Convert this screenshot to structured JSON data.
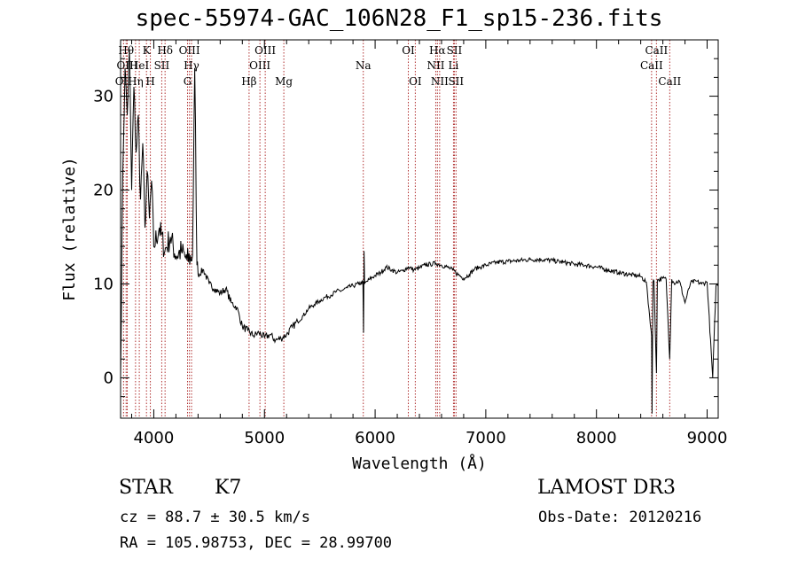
{
  "title": "spec-55974-GAC_106N28_F1_sp15-236.fits",
  "info": {
    "class": "STAR",
    "subclass": "K7",
    "survey": "LAMOST DR3",
    "cz": "cz = 88.7 ± 30.5 km/s",
    "obs_date": "Obs-Date: 20120216",
    "coords": "RA = 105.98753, DEC =  28.99700"
  },
  "colors": {
    "spectrum": "#000000",
    "line_marker": "#b03030",
    "axes": "#000000"
  },
  "chart_data": {
    "type": "line",
    "xlabel": "Wavelength (Å)",
    "ylabel": "Flux (relative)",
    "xlim": [
      3700,
      9100
    ],
    "ylim": [
      -4.3,
      36
    ],
    "xticks": [
      4000,
      5000,
      6000,
      7000,
      8000,
      9000
    ],
    "yticks": [
      0,
      10,
      20,
      30
    ],
    "series": [
      {
        "values": [
          [
            3700,
            0
          ],
          [
            3720,
            22
          ],
          [
            3740,
            33
          ],
          [
            3760,
            28
          ],
          [
            3780,
            35
          ],
          [
            3800,
            20
          ],
          [
            3820,
            31
          ],
          [
            3840,
            24
          ],
          [
            3860,
            28
          ],
          [
            3880,
            19
          ],
          [
            3900,
            25
          ],
          [
            3920,
            16
          ],
          [
            3940,
            22
          ],
          [
            3960,
            17
          ],
          [
            3980,
            21
          ],
          [
            4000,
            14
          ],
          [
            4050,
            16
          ],
          [
            4100,
            13.5
          ],
          [
            4150,
            15
          ],
          [
            4200,
            13
          ],
          [
            4250,
            13.5
          ],
          [
            4300,
            12.5
          ],
          [
            4350,
            13
          ],
          [
            4370,
            33
          ],
          [
            4390,
            12
          ],
          [
            4400,
            11
          ],
          [
            4450,
            11.5
          ],
          [
            4500,
            10
          ],
          [
            4550,
            9.5
          ],
          [
            4600,
            9
          ],
          [
            4650,
            9.5
          ],
          [
            4700,
            8
          ],
          [
            4750,
            7.5
          ],
          [
            4800,
            5.5
          ],
          [
            4850,
            5
          ],
          [
            4900,
            4.5
          ],
          [
            4950,
            4.8
          ],
          [
            5000,
            4.3
          ],
          [
            5050,
            4.6
          ],
          [
            5100,
            4
          ],
          [
            5150,
            4.2
          ],
          [
            5200,
            4.6
          ],
          [
            5250,
            5.4
          ],
          [
            5300,
            6
          ],
          [
            5350,
            6.6
          ],
          [
            5400,
            7.4
          ],
          [
            5450,
            7.8
          ],
          [
            5500,
            8.2
          ],
          [
            5550,
            8.6
          ],
          [
            5600,
            8.8
          ],
          [
            5650,
            9.2
          ],
          [
            5700,
            9.3
          ],
          [
            5750,
            9.6
          ],
          [
            5800,
            9.8
          ],
          [
            5850,
            10
          ],
          [
            5890,
            10.2
          ],
          [
            5895,
            4.8
          ],
          [
            5900,
            13.5
          ],
          [
            5905,
            10
          ],
          [
            5950,
            10.5
          ],
          [
            6000,
            10.9
          ],
          [
            6050,
            11.2
          ],
          [
            6100,
            11.8
          ],
          [
            6150,
            11.5
          ],
          [
            6200,
            11.2
          ],
          [
            6250,
            11.4
          ],
          [
            6300,
            11.8
          ],
          [
            6350,
            11.5
          ],
          [
            6400,
            11.7
          ],
          [
            6450,
            12
          ],
          [
            6500,
            12.1
          ],
          [
            6550,
            12.2
          ],
          [
            6600,
            12
          ],
          [
            6650,
            11.8
          ],
          [
            6700,
            11.5
          ],
          [
            6750,
            11
          ],
          [
            6800,
            10.6
          ],
          [
            6850,
            11
          ],
          [
            6900,
            11.6
          ],
          [
            6950,
            11.8
          ],
          [
            7000,
            12
          ],
          [
            7100,
            12.3
          ],
          [
            7200,
            12.4
          ],
          [
            7300,
            12.5
          ],
          [
            7400,
            12.6
          ],
          [
            7500,
            12.6
          ],
          [
            7600,
            12.5
          ],
          [
            7700,
            12.3
          ],
          [
            7800,
            12.1
          ],
          [
            7900,
            12
          ],
          [
            8000,
            11.8
          ],
          [
            8100,
            11.5
          ],
          [
            8200,
            11.2
          ],
          [
            8300,
            11
          ],
          [
            8400,
            10.8
          ],
          [
            8450,
            10.2
          ],
          [
            8498,
            4.5
          ],
          [
            8502,
            -3.8
          ],
          [
            8510,
            10.2
          ],
          [
            8520,
            10.3
          ],
          [
            8542,
            0.5
          ],
          [
            8550,
            10.4
          ],
          [
            8600,
            10.6
          ],
          [
            8630,
            10.5
          ],
          [
            8662,
            2
          ],
          [
            8680,
            10.5
          ],
          [
            8700,
            10.1
          ],
          [
            8750,
            10.3
          ],
          [
            8800,
            8
          ],
          [
            8850,
            10.1
          ],
          [
            8900,
            10.3
          ],
          [
            8950,
            10
          ],
          [
            9000,
            10.2
          ],
          [
            9050,
            0
          ],
          [
            9080,
            9.8
          ],
          [
            9100,
            10
          ]
        ]
      }
    ],
    "line_markers": [
      {
        "label": "OII",
        "x": 3727,
        "row": 3
      },
      {
        "label": "Hθ",
        "x": 3750,
        "row": 1
      },
      {
        "label": "OIII",
        "x": 3760,
        "row": 2
      },
      {
        "label": "Hη",
        "x": 3835,
        "row": 3
      },
      {
        "label": "HeI",
        "x": 3869,
        "row": 2
      },
      {
        "label": "K",
        "x": 3934,
        "row": 1
      },
      {
        "label": "H",
        "x": 3969,
        "row": 3
      },
      {
        "label": "SII",
        "x": 4072,
        "row": 2
      },
      {
        "label": "Hδ",
        "x": 4102,
        "row": 1
      },
      {
        "label": "G",
        "x": 4305,
        "row": 3
      },
      {
        "label": "OIII",
        "x": 4322,
        "row": 1
      },
      {
        "label": "Hγ",
        "x": 4341,
        "row": 2
      },
      {
        "label": "Hβ",
        "x": 4861,
        "row": 3
      },
      {
        "label": "OIII",
        "x": 4959,
        "row": 2
      },
      {
        "label": "OIII",
        "x": 5007,
        "row": 1
      },
      {
        "label": "Mg",
        "x": 5175,
        "row": 3
      },
      {
        "label": "Na",
        "x": 5893,
        "row": 2
      },
      {
        "label": "OI",
        "x": 6300,
        "row": 1
      },
      {
        "label": "OI",
        "x": 6363,
        "row": 3
      },
      {
        "label": "NII",
        "x": 6548,
        "row": 2
      },
      {
        "label": "Hα",
        "x": 6563,
        "row": 1
      },
      {
        "label": "NII",
        "x": 6583,
        "row": 3
      },
      {
        "label": "Li",
        "x": 6708,
        "row": 2
      },
      {
        "label": "SII",
        "x": 6716,
        "row": 1
      },
      {
        "label": "SII",
        "x": 6731,
        "row": 3
      },
      {
        "label": "CaII",
        "x": 8498,
        "row": 2
      },
      {
        "label": "CaII",
        "x": 8542,
        "row": 1
      },
      {
        "label": "CaII",
        "x": 8662,
        "row": 3
      }
    ]
  }
}
